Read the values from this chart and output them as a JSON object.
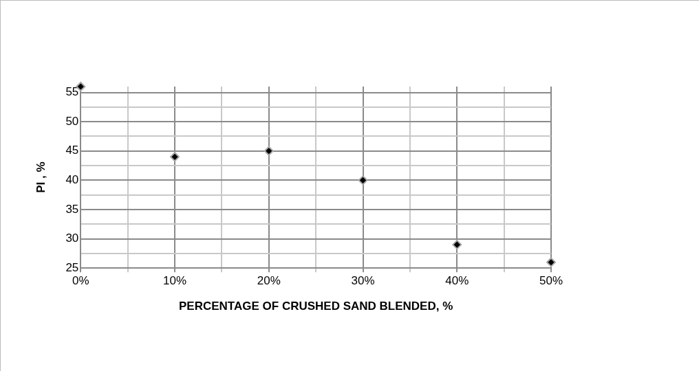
{
  "chart_data": {
    "type": "scatter",
    "xlabel": "PERCENTAGE OF CRUSHED SAND BLENDED, %",
    "ylabel": "PI , %",
    "x": [
      0,
      10,
      20,
      30,
      40,
      50
    ],
    "series": [
      {
        "color": "#000000",
        "values": [
          56,
          44,
          45,
          40,
          29,
          26
        ]
      }
    ],
    "xlim": [
      0,
      50
    ],
    "xticks": [
      {
        "value": 0,
        "label": "0%"
      },
      {
        "value": 5,
        "label": null
      },
      {
        "value": 10,
        "label": "10%"
      },
      {
        "value": 15,
        "label": null
      },
      {
        "value": 20,
        "label": "20%"
      },
      {
        "value": 25,
        "label": null
      },
      {
        "value": 30,
        "label": "30%"
      },
      {
        "value": 35,
        "label": null
      },
      {
        "value": 40,
        "label": "40%"
      },
      {
        "value": 45,
        "label": null
      },
      {
        "value": 50,
        "label": "50%"
      }
    ],
    "ylim": [
      25,
      56
    ],
    "yticks": [
      25,
      {
        "value": 27.5,
        "label": null
      },
      30,
      {
        "value": 32.5,
        "label": null
      },
      35,
      {
        "value": 37.5,
        "label": null
      },
      40,
      {
        "value": 42.5,
        "label": null
      },
      45,
      {
        "value": 47.5,
        "label": null
      },
      50,
      {
        "value": 52.5,
        "label": null
      },
      55
    ],
    "grid": true,
    "legend": false,
    "marker": "diamond"
  }
}
